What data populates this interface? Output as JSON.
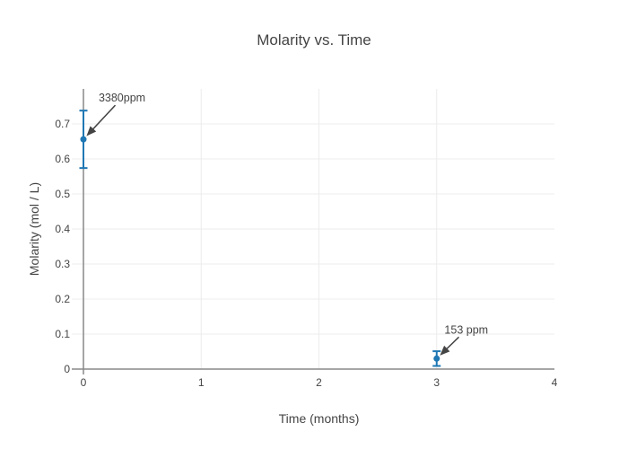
{
  "colors": {
    "series": "#1f77b4",
    "text": "#444444",
    "grid": "#ececec",
    "axis": "#888888",
    "arrow": "#444444",
    "background": "#ffffff"
  },
  "chart_data": {
    "type": "scatter",
    "title": "Molarity vs. Time",
    "xlabel": "Time (months)",
    "ylabel": "Molarity (mol / L)",
    "xlim": [
      0,
      4
    ],
    "ylim": [
      0,
      0.8
    ],
    "xticks": [
      0,
      1,
      2,
      3,
      4
    ],
    "yticks": [
      0,
      0.1,
      0.2,
      0.3,
      0.4,
      0.5,
      0.6,
      0.7
    ],
    "grid": true,
    "legend": false,
    "series": [
      {
        "name": "Molarity",
        "mode": "markers",
        "x": [
          0,
          3
        ],
        "y": [
          0.656,
          0.03
        ],
        "error_y_plus": [
          0.082,
          0.021
        ],
        "error_y_minus": [
          0.082,
          0.021
        ]
      }
    ],
    "annotations": [
      {
        "text": "3380ppm",
        "x": 0,
        "y": 0.656,
        "ax": 43,
        "ay": -46
      },
      {
        "text": "153 ppm",
        "x": 3,
        "y": 0.03,
        "ax": 33,
        "ay": -32
      }
    ]
  }
}
